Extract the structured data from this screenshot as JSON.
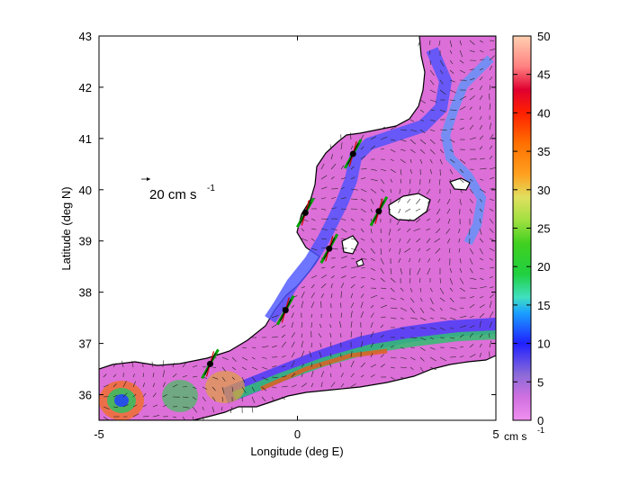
{
  "map": {
    "xlabel": "Longitude (deg E)",
    "ylabel": "Latitude (deg N)",
    "x_ticks": [
      "-5",
      "0",
      "5"
    ],
    "y_ticks": [
      "36",
      "37",
      "38",
      "39",
      "40",
      "41",
      "42",
      "43"
    ],
    "xlim": [
      -5,
      5
    ],
    "ylim": [
      35.5,
      43
    ],
    "scale_arrow_label": "20 cm s",
    "scale_arrow_exponent": "-1",
    "colors": {
      "land": "#ffffff",
      "coast": "#000000",
      "sea_low": "#e070d8",
      "sea_mid": "#3f3fff",
      "observed_profile": "#00a000",
      "model_profile": "#d00000",
      "station": "#000000"
    },
    "stations": [
      {
        "lon": 1.4,
        "lat": 40.7
      },
      {
        "lon": 0.2,
        "lat": 39.55
      },
      {
        "lon": 2.05,
        "lat": 39.58
      },
      {
        "lon": 0.8,
        "lat": 38.85
      },
      {
        "lon": -0.3,
        "lat": 37.65
      },
      {
        "lon": -2.2,
        "lat": 36.6
      }
    ]
  },
  "colorbar": {
    "ticks": [
      "0",
      "5",
      "10",
      "15",
      "20",
      "25",
      "30",
      "35",
      "40",
      "45",
      "50"
    ],
    "unit_label": "cm s",
    "unit_exponent": "-1",
    "range": [
      0,
      50
    ]
  }
}
